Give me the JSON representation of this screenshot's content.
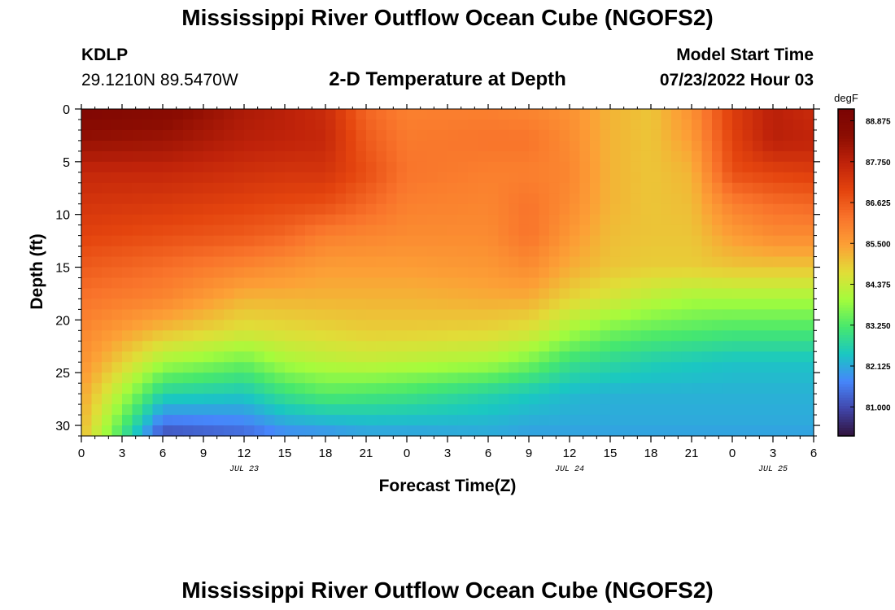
{
  "header": {
    "title": "Mississippi River Outflow Ocean Cube (NGOFS2)",
    "station": "KDLP",
    "coords": "29.1210N  89.5470W",
    "plot_title": "2-D Temperature at Depth",
    "model_start_label": "Model Start Time",
    "model_start_value": "07/23/2022 Hour 03"
  },
  "footer": {
    "title": "Mississippi River Outflow Ocean Cube (NGOFS2)"
  },
  "chart_data": {
    "type": "heatmap",
    "title": "2-D Temperature at Depth",
    "xlabel": "Forecast Time(Z)",
    "ylabel": "Depth (ft)",
    "x_start_hour": 0,
    "x_end_hour": 54,
    "x_tick_labels": [
      "0",
      "3",
      "6",
      "9",
      "12",
      "15",
      "18",
      "21",
      "0",
      "3",
      "6",
      "9",
      "12",
      "15",
      "18",
      "21",
      "0",
      "3",
      "6"
    ],
    "date_labels": [
      {
        "label": "JUL 23",
        "hour": 12
      },
      {
        "label": "JUL 24",
        "hour": 36
      },
      {
        "label": "JUL 25",
        "hour": 51
      }
    ],
    "ylim": [
      0,
      31
    ],
    "y_ticks": [
      0,
      5,
      10,
      15,
      20,
      25,
      30
    ],
    "y_inverted": true,
    "colorbar": {
      "unit": "degF",
      "min": 80.2,
      "max": 89.2,
      "tick_labels": [
        "88.875",
        "87.750",
        "86.625",
        "85.500",
        "84.375",
        "83.250",
        "82.125",
        "81.000"
      ],
      "colormap": [
        "#30123b",
        "#4146ab",
        "#4686fb",
        "#1ac7c2",
        "#47e86d",
        "#a4fc3c",
        "#e1dd37",
        "#fca036",
        "#f9742b",
        "#e4440e",
        "#c0230a",
        "#8c0d02",
        "#7a0403"
      ]
    },
    "temperature_field": {
      "time_hours": [
        0,
        6,
        12,
        15,
        18,
        21,
        24,
        30,
        33,
        36,
        39,
        42,
        45,
        48,
        51,
        54
      ],
      "depth_ft": [
        0,
        3,
        6,
        9,
        12,
        15,
        18,
        21,
        24,
        27,
        30,
        31
      ],
      "values": [
        [
          89.0,
          88.3,
          87.6,
          87.3,
          87.0,
          86.6,
          86.2,
          85.9,
          85.7,
          85.4,
          85.2,
          85.1
        ],
        [
          88.7,
          88.2,
          87.6,
          87.2,
          86.8,
          86.3,
          85.9,
          85.1,
          84.0,
          82.7,
          81.4,
          81.0
        ],
        [
          88.0,
          87.8,
          87.4,
          87.0,
          86.6,
          85.9,
          85.2,
          84.6,
          83.5,
          82.5,
          81.6,
          81.3
        ],
        [
          87.8,
          87.7,
          87.3,
          86.9,
          86.4,
          85.7,
          85.2,
          84.7,
          84.0,
          83.0,
          82.0,
          81.7
        ],
        [
          87.5,
          87.6,
          87.3,
          86.8,
          86.0,
          85.5,
          85.2,
          84.8,
          84.2,
          83.3,
          82.1,
          81.8
        ],
        [
          86.4,
          86.6,
          86.8,
          86.4,
          85.9,
          85.5,
          85.2,
          84.9,
          84.3,
          83.2,
          82.2,
          82.0
        ],
        [
          86.0,
          86.1,
          86.2,
          86.0,
          85.8,
          85.5,
          85.2,
          84.9,
          84.2,
          83.1,
          82.2,
          82.0
        ],
        [
          86.0,
          86.2,
          86.0,
          85.9,
          85.8,
          85.6,
          85.3,
          84.8,
          84.0,
          82.7,
          82.2,
          82.1
        ],
        [
          85.9,
          86.2,
          86.0,
          86.2,
          86.2,
          85.8,
          85.3,
          84.6,
          83.6,
          82.5,
          82.1,
          82.0
        ],
        [
          85.7,
          85.8,
          85.9,
          85.8,
          85.6,
          85.3,
          84.8,
          84.0,
          83.0,
          82.3,
          82.1,
          82.0
        ],
        [
          85.2,
          85.2,
          85.2,
          85.2,
          85.1,
          85.0,
          84.5,
          83.6,
          82.8,
          82.2,
          82.1,
          82.0
        ],
        [
          85.0,
          85.0,
          85.0,
          85.0,
          85.0,
          84.9,
          84.2,
          83.4,
          82.6,
          82.2,
          82.1,
          82.0
        ],
        [
          85.7,
          85.5,
          85.2,
          85.1,
          85.0,
          84.9,
          84.0,
          83.3,
          82.5,
          82.2,
          82.1,
          82.0
        ],
        [
          87.1,
          87.0,
          86.8,
          86.0,
          85.5,
          85.0,
          84.0,
          83.2,
          82.4,
          82.2,
          82.1,
          82.0
        ],
        [
          87.8,
          87.8,
          87.0,
          86.3,
          85.8,
          85.0,
          84.0,
          83.2,
          82.4,
          82.2,
          82.1,
          82.0
        ],
        [
          87.5,
          87.7,
          87.1,
          86.4,
          85.8,
          85.0,
          84.0,
          83.2,
          82.4,
          82.2,
          82.1,
          82.0
        ]
      ]
    }
  }
}
